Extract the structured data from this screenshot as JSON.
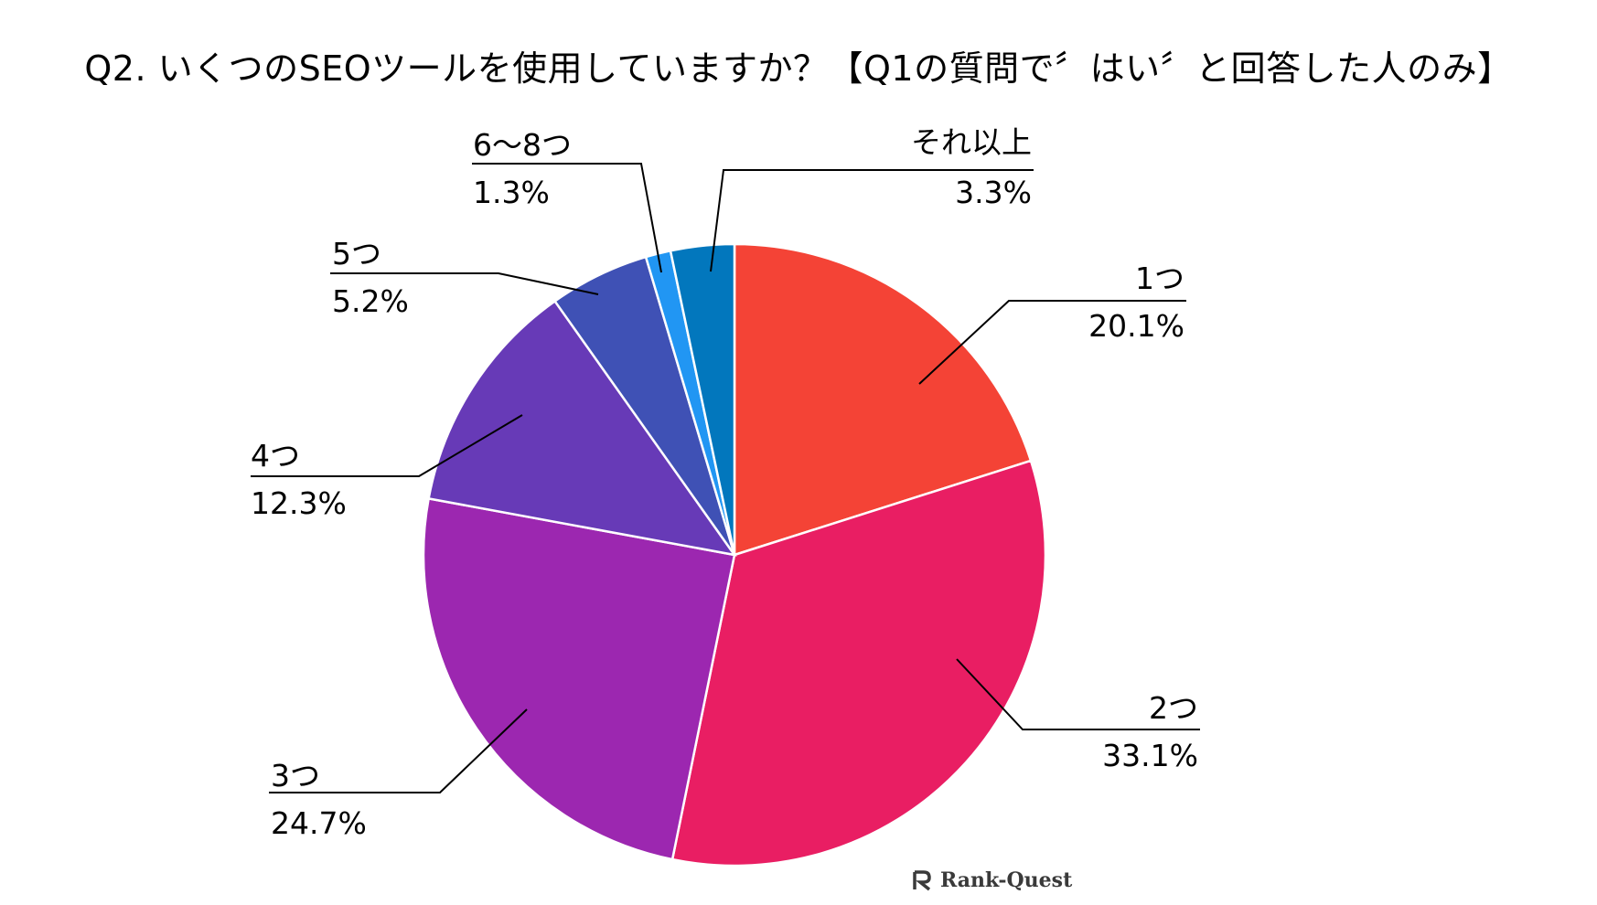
{
  "chart_data": {
    "type": "pie",
    "title": "Q2. いくつのSEOツールを使用していますか？【Q1の質問で〞はい〞と回答した人のみ】",
    "categories": [
      "1つ",
      "2つ",
      "3つ",
      "4つ",
      "5つ",
      "6～8つ",
      "それ以上"
    ],
    "values": [
      20.1,
      33.1,
      24.7,
      12.3,
      5.2,
      1.3,
      3.3
    ],
    "value_labels": [
      "20.1%",
      "33.1%",
      "24.7%",
      "12.3%",
      "5.2%",
      "1.3%",
      "3.3%"
    ],
    "colors": [
      "#F44336",
      "#E91E63",
      "#9C27B0",
      "#673AB7",
      "#3F51B5",
      "#2196F3",
      "#0277BD"
    ],
    "start": "12 o'clock",
    "direction": "clockwise",
    "legend": "none"
  },
  "logo": {
    "text": "Rank-Quest",
    "icon": "rank-quest-logo-icon"
  }
}
